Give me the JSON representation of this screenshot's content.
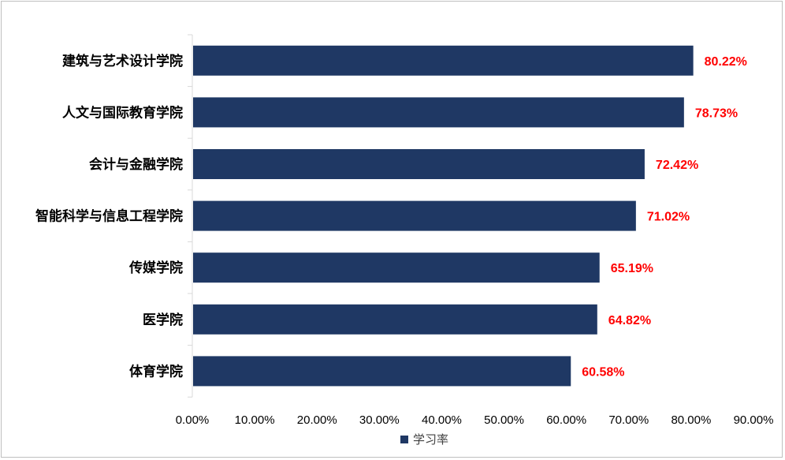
{
  "chart_data": {
    "type": "bar",
    "orientation": "horizontal",
    "categories": [
      "建筑与艺术设计学院",
      "人文与国际教育学院",
      "会计与金融学院",
      "智能科学与信息工程学院",
      "传媒学院",
      "医学院",
      "体育学院"
    ],
    "series": [
      {
        "name": "学习率",
        "values": [
          80.22,
          78.73,
          72.42,
          71.02,
          65.19,
          64.82,
          60.58
        ],
        "value_labels": [
          "80.22%",
          "78.73%",
          "72.42%",
          "71.02%",
          "65.19%",
          "64.82%",
          "60.58%"
        ]
      }
    ],
    "x_ticks": [
      "0.00%",
      "10.00%",
      "20.00%",
      "30.00%",
      "40.00%",
      "50.00%",
      "60.00%",
      "70.00%",
      "80.00%",
      "90.00%"
    ],
    "xlim": [
      0,
      90
    ],
    "grid": false,
    "legend_position": "bottom",
    "colors": {
      "bar": "#1f3864",
      "value_label": "#ff0000",
      "axis": "#d9d9d9"
    }
  }
}
